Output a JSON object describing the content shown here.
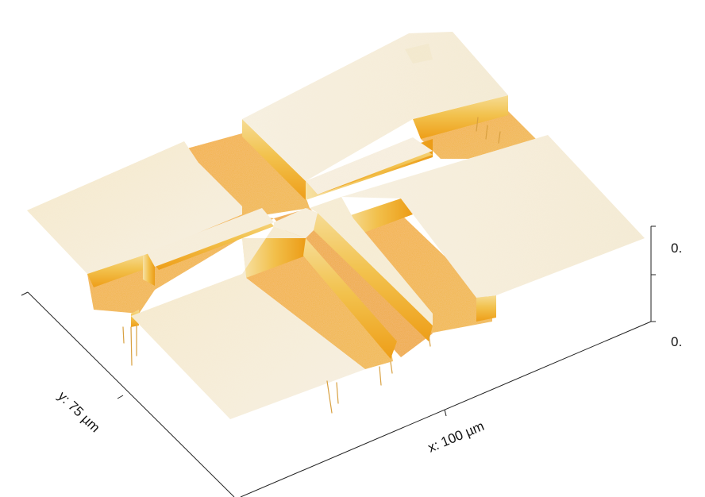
{
  "figure": {
    "x_axis_label": "x: 100 µm",
    "y_axis_label": "y: 75 µm",
    "z_tick_labels": [
      "0.",
      "0."
    ]
  },
  "colors": {
    "high_surface": "#f4ead2",
    "high_surface_light": "#f8f2e4",
    "low_surface": "#f0a821",
    "low_surface_dark": "#e39410",
    "wall": "#f0c050",
    "wall_dark": "#e8a420",
    "axis": "#222222"
  }
}
